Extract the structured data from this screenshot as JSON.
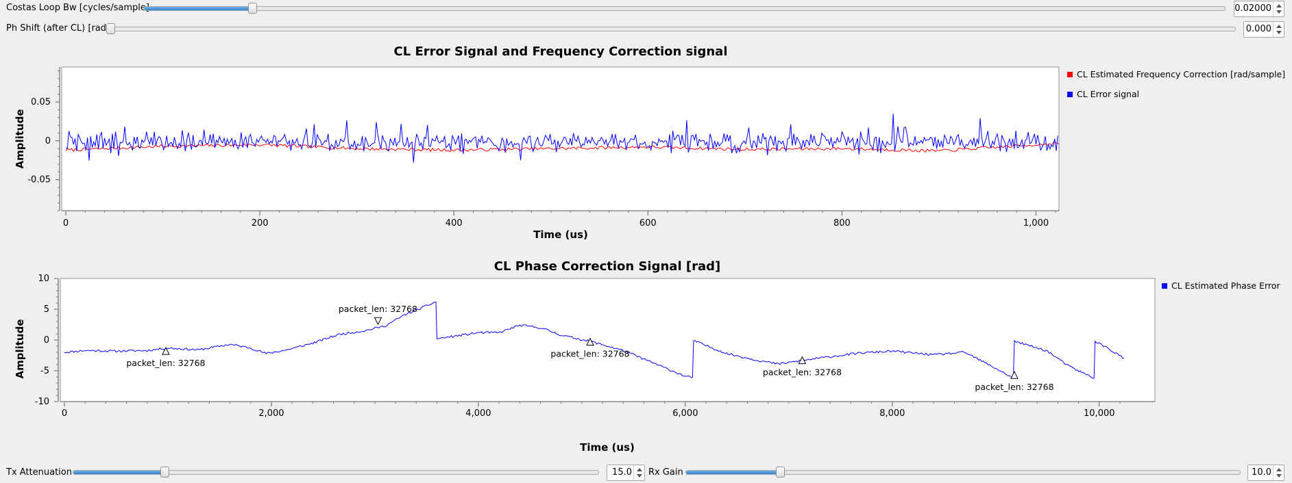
{
  "controls": {
    "costas": {
      "label": "Costas Loop Bw [cycles/sample]",
      "value": "0.02000",
      "fraction": 0.1
    },
    "phshift": {
      "label": "Ph Shift (after CL) [rad]",
      "value": "0.000",
      "fraction": 0.0
    },
    "tx": {
      "label": "Tx Attenuation",
      "value": "15.0",
      "fraction": 0.175
    },
    "rx": {
      "label": "Rx Gain",
      "value": "10.0",
      "fraction": 0.17
    }
  },
  "plot1": {
    "title": "CL Error Signal and Frequency Correction signal",
    "xlabel": "Time (us)",
    "ylabel": "Amplitude",
    "xticks": [
      "0",
      "200",
      "400",
      "600",
      "800",
      "1,000"
    ],
    "yticks": [
      "0.05",
      "0",
      "-0.05"
    ],
    "legend": [
      {
        "name": "CL Estimated Frequency Correction [rad/sample]",
        "color": "#ff0000"
      },
      {
        "name": "CL Error signal",
        "color": "#0000ff"
      }
    ]
  },
  "plot2": {
    "title": "CL Phase Correction Signal [rad]",
    "xlabel": "Time (us)",
    "ylabel": "Amplitude",
    "xticks": [
      "0",
      "2,000",
      "4,000",
      "6,000",
      "8,000",
      "10,000"
    ],
    "yticks": [
      "10",
      "5",
      "0",
      "-5",
      "-10"
    ],
    "legend": [
      {
        "name": "CL Estimated Phase Error",
        "color": "#0000ff"
      }
    ],
    "tags": [
      {
        "text": "packet_len: 32768",
        "x": 980,
        "y": -1.9,
        "dir": "up"
      },
      {
        "text": "packet_len: 32768",
        "x": 3030,
        "y": 3.2,
        "dir": "down"
      },
      {
        "text": "packet_len: 32768",
        "x": 5080,
        "y": -0.4,
        "dir": "up"
      },
      {
        "text": "packet_len: 32768",
        "x": 7130,
        "y": -3.4,
        "dir": "up"
      },
      {
        "text": "packet_len: 32768",
        "x": 9180,
        "y": -5.8,
        "dir": "up"
      }
    ]
  },
  "chart_data": [
    {
      "type": "line",
      "title": "CL Error Signal and Frequency Correction signal",
      "xlabel": "Time (us)",
      "ylabel": "Amplitude",
      "xlim": [
        0,
        1024
      ],
      "ylim": [
        -0.09,
        0.095
      ],
      "grid": false,
      "legend_position": "right",
      "series": [
        {
          "name": "CL Estimated Frequency Correction [rad/sample]",
          "color": "#ff0000",
          "x": [
            0,
            100,
            200,
            300,
            400,
            500,
            600,
            700,
            800,
            900,
            1024
          ],
          "y": [
            -0.012,
            -0.007,
            -0.005,
            -0.01,
            -0.012,
            -0.01,
            -0.008,
            -0.011,
            -0.01,
            -0.013,
            -0.003
          ]
        },
        {
          "name": "CL Error signal",
          "color": "#0000ff",
          "mean": -0.002,
          "amplitude_range": [
            -0.03,
            0.04
          ]
        }
      ]
    },
    {
      "type": "line",
      "title": "CL Phase Correction Signal [rad]",
      "xlabel": "Time (us)",
      "ylabel": "Amplitude",
      "xlim": [
        0,
        10240
      ],
      "ylim": [
        -10,
        10
      ],
      "grid": false,
      "legend_position": "right",
      "series": [
        {
          "name": "CL Estimated Phase Error",
          "color": "#0000ff",
          "points": [
            [
              0,
              -2.0
            ],
            [
              200,
              -1.7
            ],
            [
              500,
              -1.8
            ],
            [
              800,
              -1.7
            ],
            [
              1000,
              -1.3
            ],
            [
              1300,
              -1.6
            ],
            [
              1600,
              -0.7
            ],
            [
              1800,
              -1.3
            ],
            [
              1950,
              -2.2
            ],
            [
              2150,
              -1.6
            ],
            [
              2400,
              -0.5
            ],
            [
              2650,
              0.9
            ],
            [
              2900,
              1.5
            ],
            [
              3100,
              2.3
            ],
            [
              3300,
              4.2
            ],
            [
              3450,
              5.2
            ],
            [
              3590,
              6.2
            ],
            [
              3600,
              0.2
            ],
            [
              3800,
              0.7
            ],
            [
              4000,
              1.2
            ],
            [
              4200,
              1.2
            ],
            [
              4400,
              2.4
            ],
            [
              4600,
              2.0
            ],
            [
              4800,
              0.8
            ],
            [
              5100,
              -0.3
            ],
            [
              5400,
              -1.7
            ],
            [
              5700,
              -3.8
            ],
            [
              6000,
              -5.9
            ],
            [
              6070,
              -6.1
            ],
            [
              6080,
              -0.1
            ],
            [
              6400,
              -2.2
            ],
            [
              6700,
              -3.3
            ],
            [
              6900,
              -3.9
            ],
            [
              7100,
              -3.4
            ],
            [
              7400,
              -2.7
            ],
            [
              7700,
              -2.1
            ],
            [
              8000,
              -1.8
            ],
            [
              8400,
              -2.4
            ],
            [
              8700,
              -2.0
            ],
            [
              9000,
              -4.6
            ],
            [
              9150,
              -6.0
            ],
            [
              9170,
              -6.2
            ],
            [
              9180,
              -0.2
            ],
            [
              9500,
              -1.8
            ],
            [
              9700,
              -4.2
            ],
            [
              9950,
              -6.2
            ],
            [
              9960,
              -0.2
            ],
            [
              10100,
              -1.5
            ],
            [
              10240,
              -3.0
            ]
          ]
        }
      ]
    }
  ]
}
